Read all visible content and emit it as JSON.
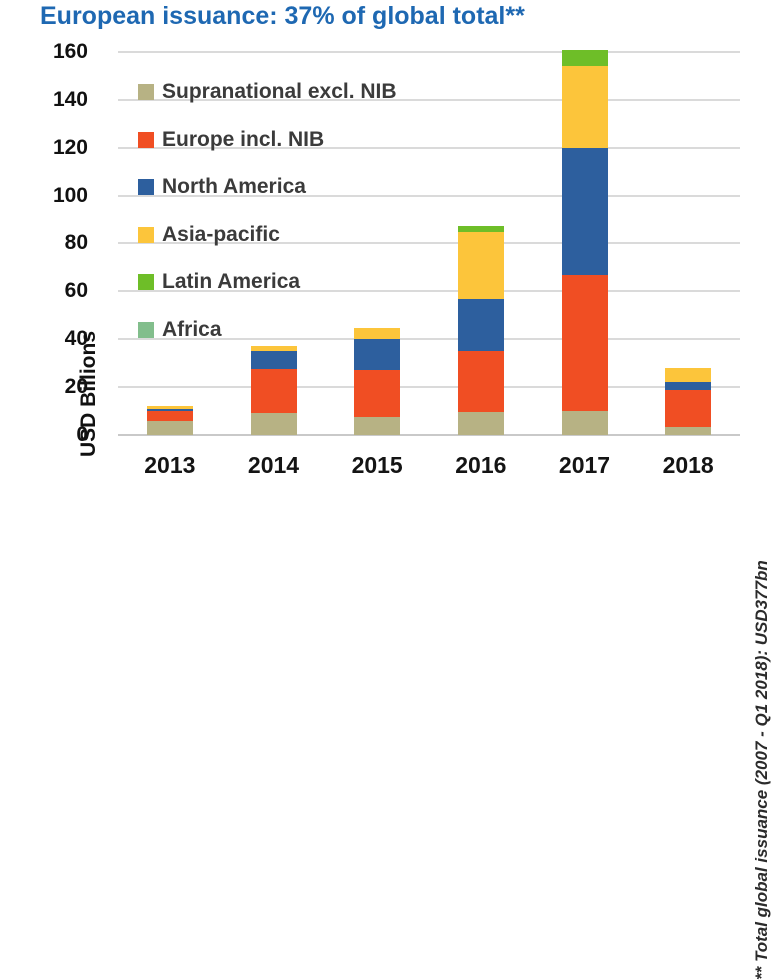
{
  "title": "European issuance: 37% of global total**",
  "footnote": "** Total global issuance (2007 - Q1 2018): USD377bn",
  "colors": {
    "title_blue": "#1E68B2",
    "gridline_gray": "#DADADA",
    "axis_text": "#111111",
    "legend_text": "#3B3B3B"
  },
  "chart_data": {
    "type": "bar",
    "stacked": true,
    "title": "European issuance: 37% of global total**",
    "categories": [
      "2013",
      "2014",
      "2015",
      "2016",
      "2017",
      "2018"
    ],
    "series": [
      {
        "name": "Supranational excl. NIB",
        "color": "#B7B284",
        "values": [
          6,
          9,
          7.5,
          9.5,
          10,
          3.5
        ]
      },
      {
        "name": "Europe incl. NIB",
        "color": "#F04E23",
        "values": [
          4,
          18.5,
          19.5,
          25.5,
          57,
          15.5
        ]
      },
      {
        "name": "North America",
        "color": "#2D5F9E",
        "values": [
          1,
          7.5,
          13,
          22,
          53,
          3
        ]
      },
      {
        "name": "Asia-pacific",
        "color": "#FCC53B",
        "values": [
          1,
          2,
          4.5,
          28,
          34,
          6
        ]
      },
      {
        "name": "Latin America",
        "color": "#6EBE28",
        "values": [
          0,
          0,
          0,
          2.5,
          7,
          0
        ]
      },
      {
        "name": "Africa",
        "color": "#82BE8C",
        "values": [
          0,
          0,
          0,
          0,
          0,
          0
        ]
      }
    ],
    "totals": [
      12,
      37,
      44.5,
      87.5,
      161,
      28
    ],
    "xlabel": "",
    "ylabel": "USD Billions",
    "ylim": [
      0,
      160
    ],
    "yticks": [
      0,
      20,
      40,
      60,
      80,
      100,
      120,
      140,
      160
    ],
    "grid": true,
    "legend_position": "upper-left-inside"
  }
}
